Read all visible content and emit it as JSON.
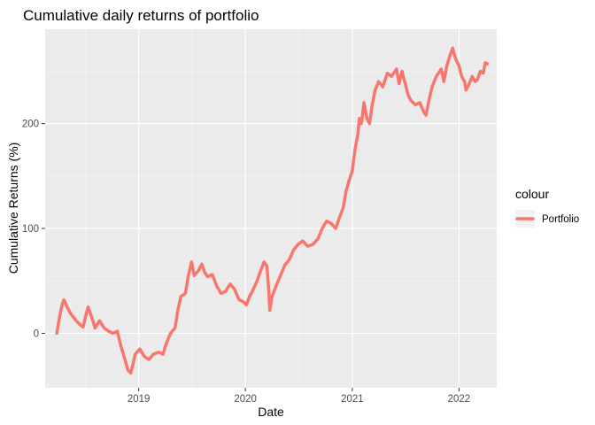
{
  "chart_data": {
    "type": "line",
    "title": "Cumulative daily returns of portfolio",
    "xlabel": "Date",
    "ylabel": "Cumulative Returns (%)",
    "xlim": [
      "2018-02-15",
      "2022-05-10"
    ],
    "ylim": [
      -52,
      290
    ],
    "x_ticks": [
      {
        "label": "2019",
        "date": "2019-01-01"
      },
      {
        "label": "2020",
        "date": "2020-01-01"
      },
      {
        "label": "2021",
        "date": "2021-01-01"
      },
      {
        "label": "2022",
        "date": "2022-01-01"
      }
    ],
    "y_ticks": [
      0,
      100,
      200
    ],
    "grid": true,
    "legend": {
      "title": "colour",
      "position": "right"
    },
    "series": [
      {
        "name": "Portfolio",
        "color": "#F8766D",
        "points": [
          [
            "2018-03-27",
            0
          ],
          [
            "2018-04-03",
            12
          ],
          [
            "2018-04-12",
            25
          ],
          [
            "2018-04-20",
            32
          ],
          [
            "2018-05-01",
            25
          ],
          [
            "2018-05-15",
            18
          ],
          [
            "2018-06-01",
            12
          ],
          [
            "2018-06-15",
            8
          ],
          [
            "2018-06-25",
            6
          ],
          [
            "2018-07-05",
            18
          ],
          [
            "2018-07-12",
            25
          ],
          [
            "2018-07-25",
            15
          ],
          [
            "2018-08-05",
            5
          ],
          [
            "2018-08-20",
            12
          ],
          [
            "2018-09-05",
            5
          ],
          [
            "2018-09-20",
            2
          ],
          [
            "2018-10-05",
            0
          ],
          [
            "2018-10-20",
            2
          ],
          [
            "2018-11-01",
            -12
          ],
          [
            "2018-11-15",
            -25
          ],
          [
            "2018-11-25",
            -35
          ],
          [
            "2018-12-05",
            -38
          ],
          [
            "2018-12-12",
            -30
          ],
          [
            "2018-12-20",
            -20
          ],
          [
            "2019-01-05",
            -15
          ],
          [
            "2019-01-20",
            -22
          ],
          [
            "2019-02-05",
            -25
          ],
          [
            "2019-02-20",
            -20
          ],
          [
            "2019-03-10",
            -18
          ],
          [
            "2019-03-25",
            -20
          ],
          [
            "2019-04-05",
            -10
          ],
          [
            "2019-04-20",
            0
          ],
          [
            "2019-05-05",
            5
          ],
          [
            "2019-05-15",
            22
          ],
          [
            "2019-05-25",
            35
          ],
          [
            "2019-06-10",
            38
          ],
          [
            "2019-06-20",
            55
          ],
          [
            "2019-07-01",
            68
          ],
          [
            "2019-07-10",
            55
          ],
          [
            "2019-07-25",
            60
          ],
          [
            "2019-08-05",
            66
          ],
          [
            "2019-08-15",
            58
          ],
          [
            "2019-08-25",
            54
          ],
          [
            "2019-09-10",
            56
          ],
          [
            "2019-09-25",
            45
          ],
          [
            "2019-10-10",
            38
          ],
          [
            "2019-10-25",
            40
          ],
          [
            "2019-11-10",
            47
          ],
          [
            "2019-11-25",
            42
          ],
          [
            "2019-12-10",
            32
          ],
          [
            "2019-12-25",
            30
          ],
          [
            "2020-01-05",
            27
          ],
          [
            "2020-01-15",
            35
          ],
          [
            "2020-01-25",
            40
          ],
          [
            "2020-02-10",
            50
          ],
          [
            "2020-02-20",
            58
          ],
          [
            "2020-03-05",
            68
          ],
          [
            "2020-03-15",
            64
          ],
          [
            "2020-03-20",
            45
          ],
          [
            "2020-03-25",
            22
          ],
          [
            "2020-04-01",
            35
          ],
          [
            "2020-04-15",
            45
          ],
          [
            "2020-04-30",
            55
          ],
          [
            "2020-05-15",
            65
          ],
          [
            "2020-05-30",
            70
          ],
          [
            "2020-06-15",
            80
          ],
          [
            "2020-06-30",
            85
          ],
          [
            "2020-07-15",
            88
          ],
          [
            "2020-08-01",
            83
          ],
          [
            "2020-08-20",
            85
          ],
          [
            "2020-09-05",
            90
          ],
          [
            "2020-09-20",
            100
          ],
          [
            "2020-10-05",
            107
          ],
          [
            "2020-10-20",
            105
          ],
          [
            "2020-11-05",
            100
          ],
          [
            "2020-11-15",
            108
          ],
          [
            "2020-12-01",
            120
          ],
          [
            "2020-12-10",
            135
          ],
          [
            "2020-12-20",
            145
          ],
          [
            "2021-01-01",
            155
          ],
          [
            "2021-01-10",
            175
          ],
          [
            "2021-01-20",
            190
          ],
          [
            "2021-01-25",
            205
          ],
          [
            "2021-02-01",
            200
          ],
          [
            "2021-02-10",
            220
          ],
          [
            "2021-02-20",
            205
          ],
          [
            "2021-03-01",
            200
          ],
          [
            "2021-03-10",
            218
          ],
          [
            "2021-03-20",
            232
          ],
          [
            "2021-04-01",
            240
          ],
          [
            "2021-04-15",
            235
          ],
          [
            "2021-05-01",
            248
          ],
          [
            "2021-05-15",
            245
          ],
          [
            "2021-06-01",
            252
          ],
          [
            "2021-06-10",
            238
          ],
          [
            "2021-06-20",
            250
          ],
          [
            "2021-07-01",
            238
          ],
          [
            "2021-07-10",
            228
          ],
          [
            "2021-07-20",
            222
          ],
          [
            "2021-08-05",
            218
          ],
          [
            "2021-08-20",
            220
          ],
          [
            "2021-09-01",
            212
          ],
          [
            "2021-09-10",
            208
          ],
          [
            "2021-09-20",
            222
          ],
          [
            "2021-10-01",
            235
          ],
          [
            "2021-10-15",
            245
          ],
          [
            "2021-11-01",
            252
          ],
          [
            "2021-11-10",
            240
          ],
          [
            "2021-11-20",
            255
          ],
          [
            "2021-12-01",
            265
          ],
          [
            "2021-12-10",
            272
          ],
          [
            "2021-12-20",
            262
          ],
          [
            "2022-01-01",
            255
          ],
          [
            "2022-01-10",
            245
          ],
          [
            "2022-01-20",
            240
          ],
          [
            "2022-01-25",
            232
          ],
          [
            "2022-02-05",
            238
          ],
          [
            "2022-02-15",
            245
          ],
          [
            "2022-02-25",
            240
          ],
          [
            "2022-03-05",
            242
          ],
          [
            "2022-03-15",
            250
          ],
          [
            "2022-03-25",
            248
          ],
          [
            "2022-04-01",
            258
          ],
          [
            "2022-04-08",
            257
          ]
        ]
      }
    ]
  }
}
